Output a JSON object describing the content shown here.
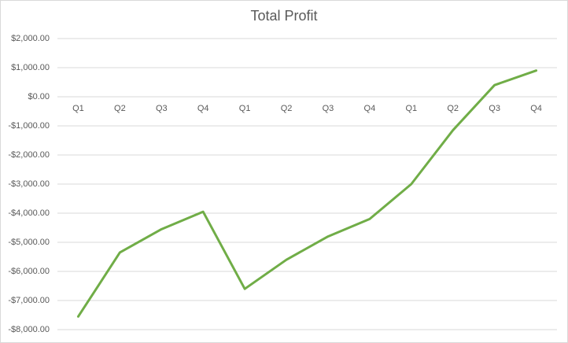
{
  "chart_data": {
    "type": "line",
    "title": "Total Profit",
    "categories": [
      "Q1",
      "Q2",
      "Q3",
      "Q4",
      "Q1",
      "Q2",
      "Q3",
      "Q4",
      "Q1",
      "Q2",
      "Q3",
      "Q4"
    ],
    "series": [
      {
        "name": "Total Profit",
        "color": "#70ad47",
        "values": [
          -7550,
          -5350,
          -4550,
          -3950,
          -6600,
          -5600,
          -4800,
          -4200,
          -3000,
          -1150,
          400,
          900
        ]
      }
    ],
    "ylim": [
      -8000,
      2000
    ],
    "yticks": [
      {
        "value": -8000,
        "label": "-$8,000.00"
      },
      {
        "value": -7000,
        "label": "-$7,000.00"
      },
      {
        "value": -6000,
        "label": "-$6,000.00"
      },
      {
        "value": -5000,
        "label": "-$5,000.00"
      },
      {
        "value": -4000,
        "label": "-$4,000.00"
      },
      {
        "value": -3000,
        "label": "-$3,000.00"
      },
      {
        "value": -2000,
        "label": "-$2,000.00"
      },
      {
        "value": -1000,
        "label": "-$1,000.00"
      },
      {
        "value": 0,
        "label": "$0.00"
      },
      {
        "value": 1000,
        "label": "$1,000.00"
      },
      {
        "value": 2000,
        "label": "$2,000.00"
      }
    ],
    "grid": true
  }
}
